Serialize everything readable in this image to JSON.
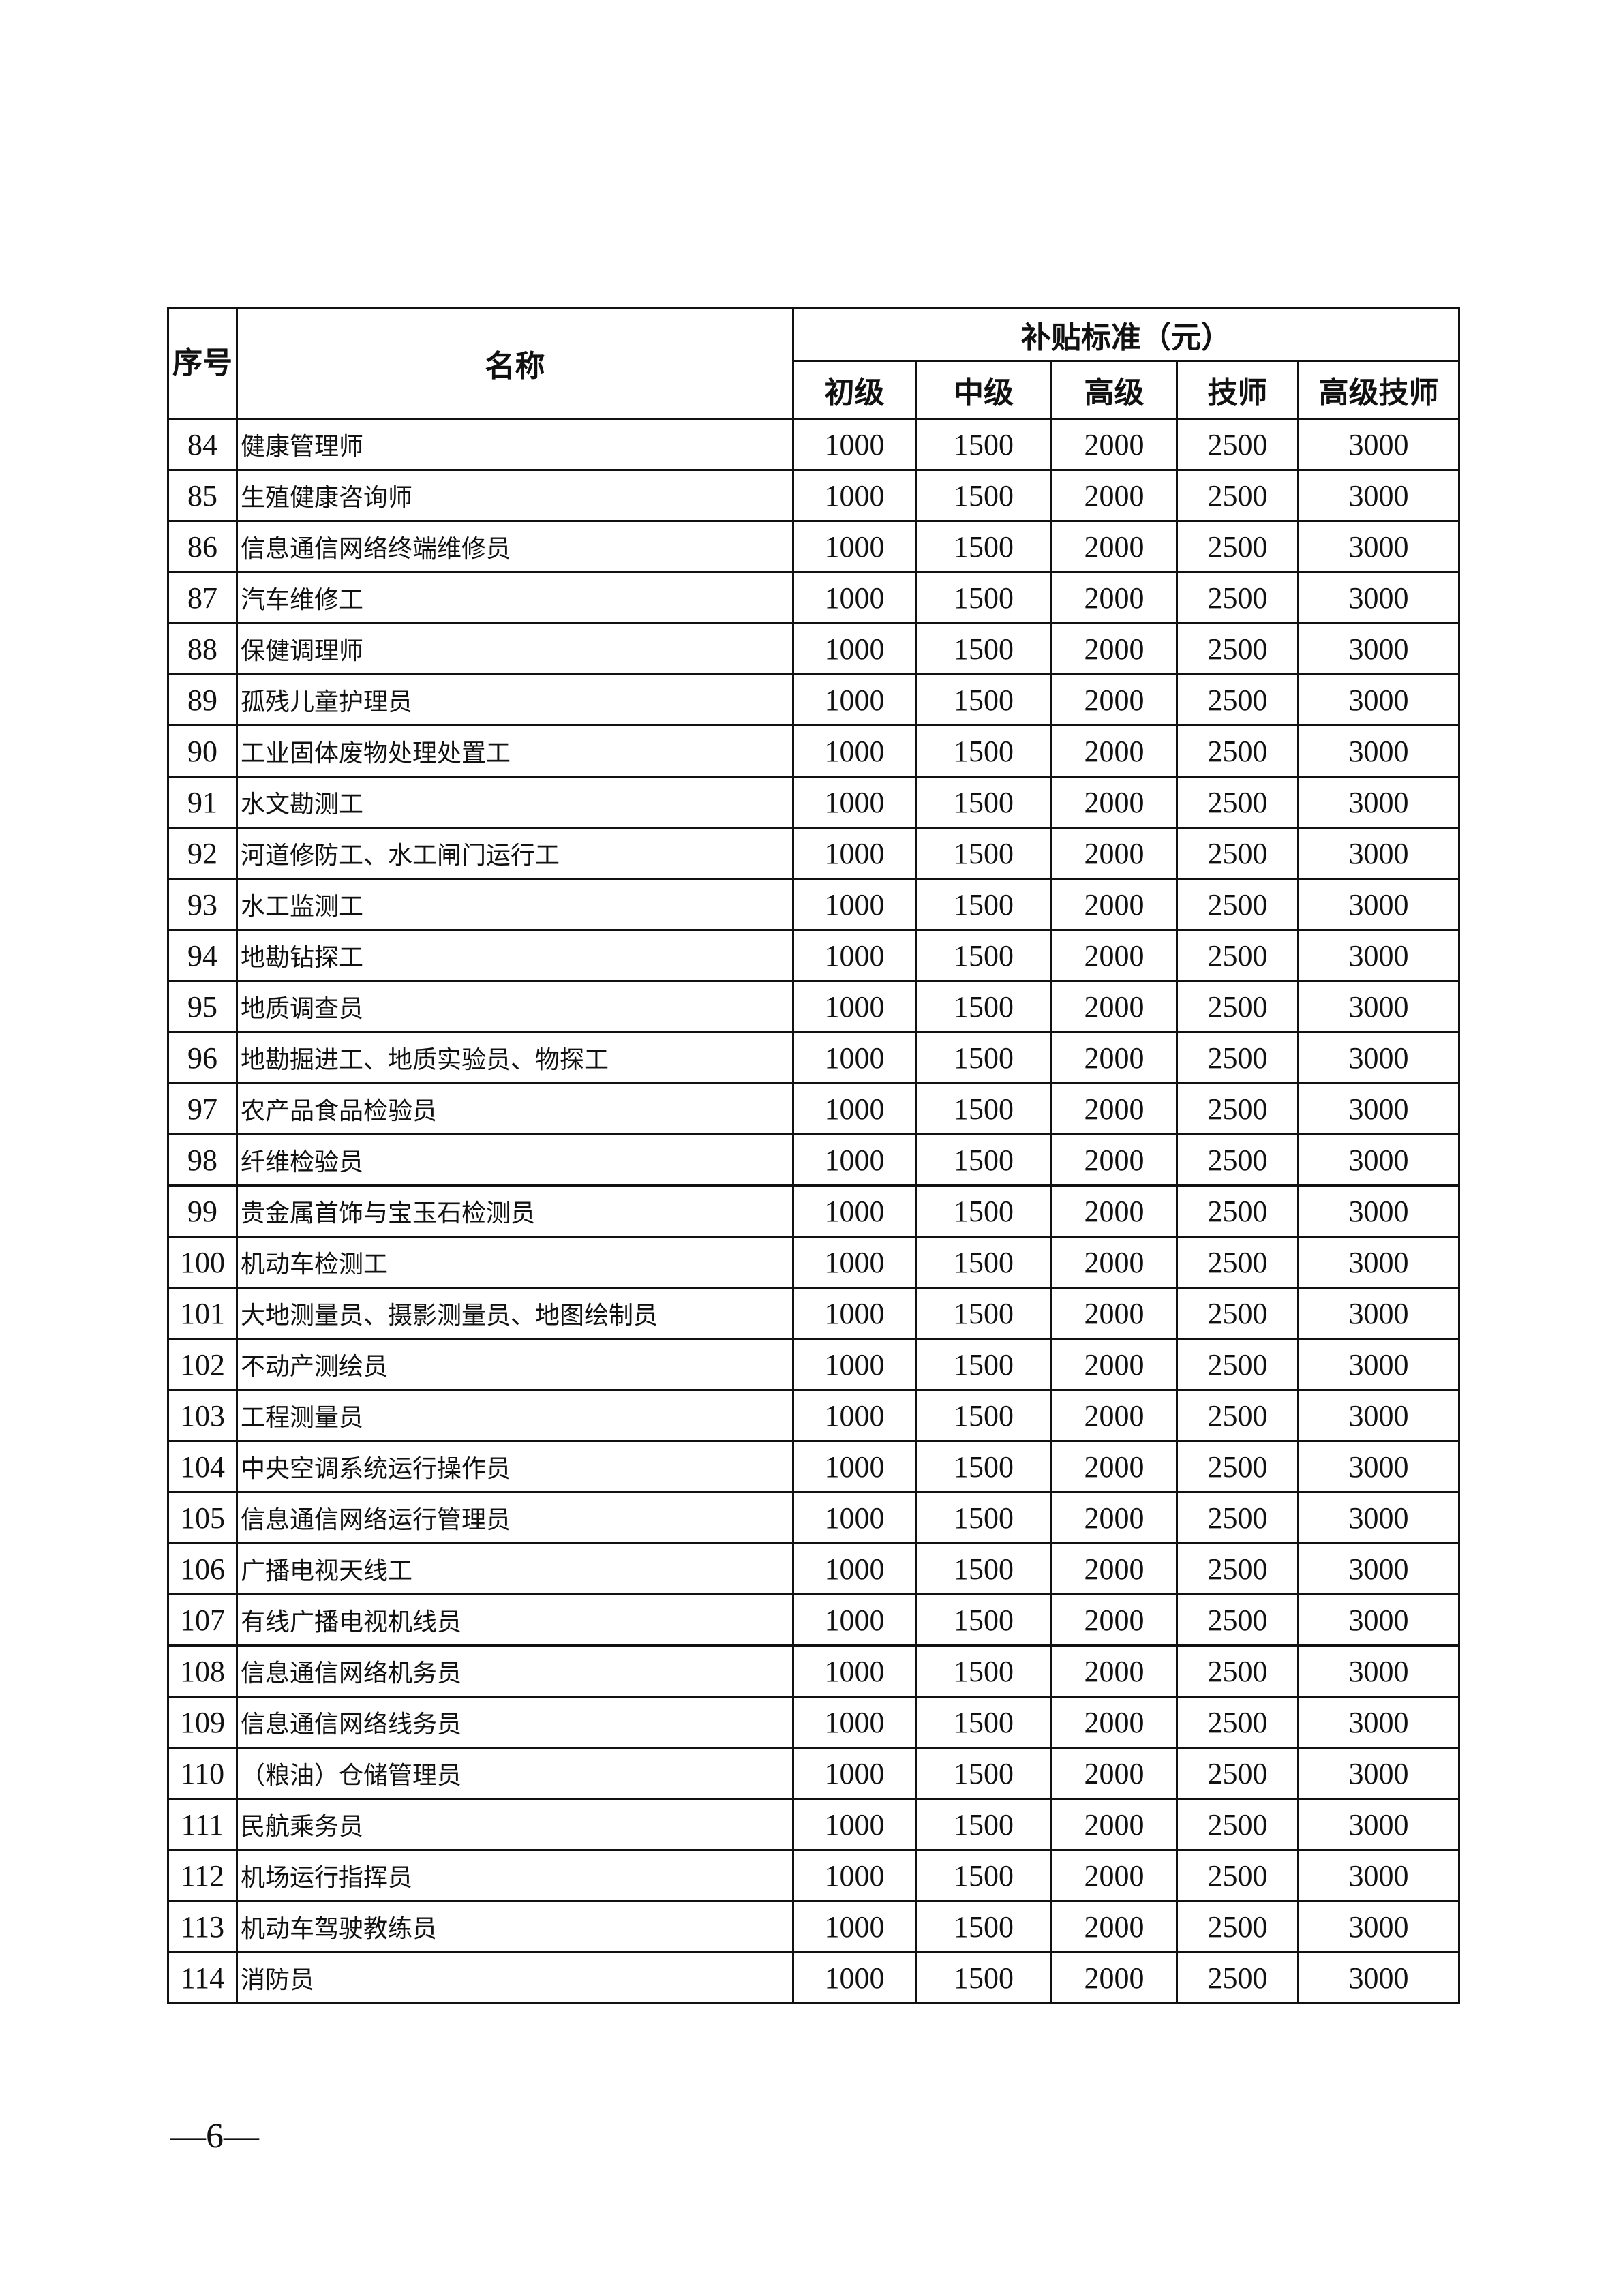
{
  "table": {
    "header": {
      "seq": "序号",
      "name": "名称",
      "subsidy_group": "补贴标准（元）",
      "levels": [
        "初级",
        "中级",
        "高级",
        "技师",
        "高级技师"
      ]
    },
    "rows": [
      [
        "84",
        "健康管理师",
        "1000",
        "1500",
        "2000",
        "2500",
        "3000"
      ],
      [
        "85",
        "生殖健康咨询师",
        "1000",
        "1500",
        "2000",
        "2500",
        "3000"
      ],
      [
        "86",
        "信息通信网络终端维修员",
        "1000",
        "1500",
        "2000",
        "2500",
        "3000"
      ],
      [
        "87",
        "汽车维修工",
        "1000",
        "1500",
        "2000",
        "2500",
        "3000"
      ],
      [
        "88",
        "保健调理师",
        "1000",
        "1500",
        "2000",
        "2500",
        "3000"
      ],
      [
        "89",
        "孤残儿童护理员",
        "1000",
        "1500",
        "2000",
        "2500",
        "3000"
      ],
      [
        "90",
        "工业固体废物处理处置工",
        "1000",
        "1500",
        "2000",
        "2500",
        "3000"
      ],
      [
        "91",
        "水文勘测工",
        "1000",
        "1500",
        "2000",
        "2500",
        "3000"
      ],
      [
        "92",
        "河道修防工、水工闸门运行工",
        "1000",
        "1500",
        "2000",
        "2500",
        "3000"
      ],
      [
        "93",
        "水工监测工",
        "1000",
        "1500",
        "2000",
        "2500",
        "3000"
      ],
      [
        "94",
        "地勘钻探工",
        "1000",
        "1500",
        "2000",
        "2500",
        "3000"
      ],
      [
        "95",
        "地质调查员",
        "1000",
        "1500",
        "2000",
        "2500",
        "3000"
      ],
      [
        "96",
        "地勘掘进工、地质实验员、物探工",
        "1000",
        "1500",
        "2000",
        "2500",
        "3000"
      ],
      [
        "97",
        "农产品食品检验员",
        "1000",
        "1500",
        "2000",
        "2500",
        "3000"
      ],
      [
        "98",
        "纤维检验员",
        "1000",
        "1500",
        "2000",
        "2500",
        "3000"
      ],
      [
        "99",
        "贵金属首饰与宝玉石检测员",
        "1000",
        "1500",
        "2000",
        "2500",
        "3000"
      ],
      [
        "100",
        "机动车检测工",
        "1000",
        "1500",
        "2000",
        "2500",
        "3000"
      ],
      [
        "101",
        "大地测量员、摄影测量员、地图绘制员",
        "1000",
        "1500",
        "2000",
        "2500",
        "3000"
      ],
      [
        "102",
        "不动产测绘员",
        "1000",
        "1500",
        "2000",
        "2500",
        "3000"
      ],
      [
        "103",
        "工程测量员",
        "1000",
        "1500",
        "2000",
        "2500",
        "3000"
      ],
      [
        "104",
        "中央空调系统运行操作员",
        "1000",
        "1500",
        "2000",
        "2500",
        "3000"
      ],
      [
        "105",
        "信息通信网络运行管理员",
        "1000",
        "1500",
        "2000",
        "2500",
        "3000"
      ],
      [
        "106",
        "广播电视天线工",
        "1000",
        "1500",
        "2000",
        "2500",
        "3000"
      ],
      [
        "107",
        "有线广播电视机线员",
        "1000",
        "1500",
        "2000",
        "2500",
        "3000"
      ],
      [
        "108",
        "信息通信网络机务员",
        "1000",
        "1500",
        "2000",
        "2500",
        "3000"
      ],
      [
        "109",
        "信息通信网络线务员",
        "1000",
        "1500",
        "2000",
        "2500",
        "3000"
      ],
      [
        "110",
        "（粮油）仓储管理员",
        "1000",
        "1500",
        "2000",
        "2500",
        "3000"
      ],
      [
        "111",
        "民航乘务员",
        "1000",
        "1500",
        "2000",
        "2500",
        "3000"
      ],
      [
        "112",
        "机场运行指挥员",
        "1000",
        "1500",
        "2000",
        "2500",
        "3000"
      ],
      [
        "113",
        "机动车驾驶教练员",
        "1000",
        "1500",
        "2000",
        "2500",
        "3000"
      ],
      [
        "114",
        "消防员",
        "1000",
        "1500",
        "2000",
        "2500",
        "3000"
      ]
    ]
  },
  "footer": {
    "page_number": "—6—"
  }
}
